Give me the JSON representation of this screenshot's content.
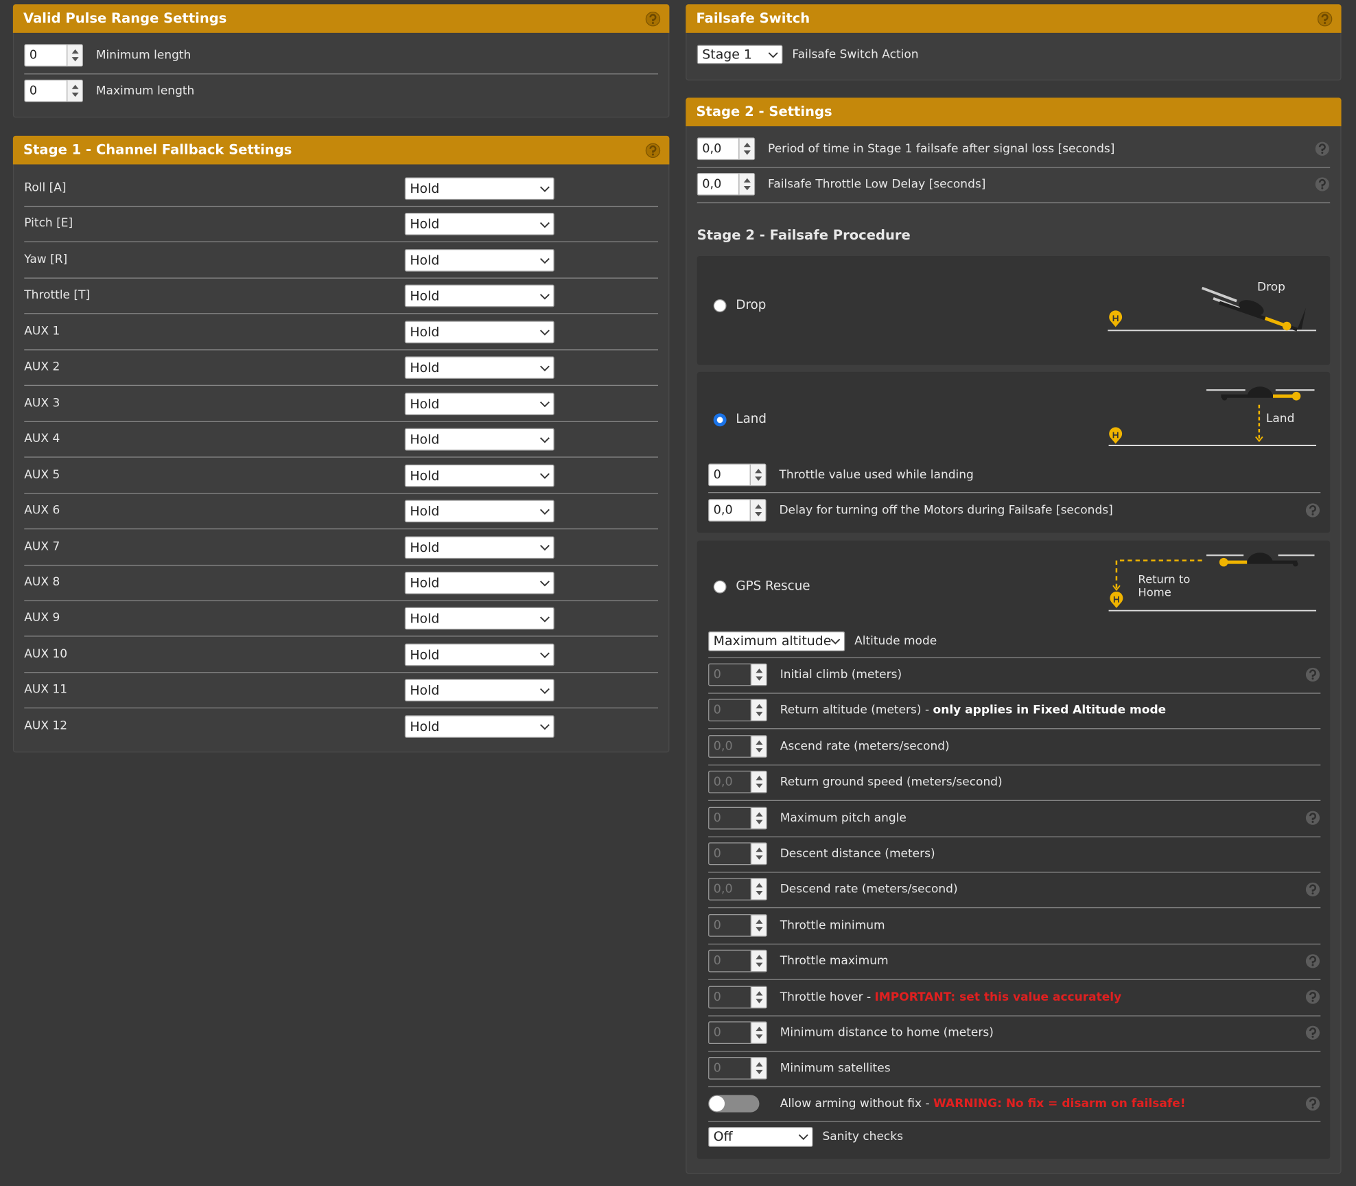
{
  "pulse": {
    "title": "Valid Pulse Range Settings",
    "help": true,
    "fields": [
      {
        "value": "0",
        "label": "Minimum length"
      },
      {
        "value": "0",
        "label": "Maximum length"
      }
    ]
  },
  "channels": {
    "title": "Stage 1 - Channel Fallback Settings",
    "help": true,
    "rows": [
      {
        "label": "Roll [A]",
        "value": "Hold"
      },
      {
        "label": "Pitch [E]",
        "value": "Hold"
      },
      {
        "label": "Yaw [R]",
        "value": "Hold"
      },
      {
        "label": "Throttle [T]",
        "value": "Hold"
      },
      {
        "label": "AUX 1",
        "value": "Hold"
      },
      {
        "label": "AUX 2",
        "value": "Hold"
      },
      {
        "label": "AUX 3",
        "value": "Hold"
      },
      {
        "label": "AUX 4",
        "value": "Hold"
      },
      {
        "label": "AUX 5",
        "value": "Hold"
      },
      {
        "label": "AUX 6",
        "value": "Hold"
      },
      {
        "label": "AUX 7",
        "value": "Hold"
      },
      {
        "label": "AUX 8",
        "value": "Hold"
      },
      {
        "label": "AUX 9",
        "value": "Hold"
      },
      {
        "label": "AUX 10",
        "value": "Hold"
      },
      {
        "label": "AUX 11",
        "value": "Hold"
      },
      {
        "label": "AUX 12",
        "value": "Hold"
      }
    ]
  },
  "switch": {
    "title": "Failsafe Switch",
    "value": "Stage 1",
    "label": "Failsafe Switch Action",
    "help": true
  },
  "stage2": {
    "title": "Stage 2 - Settings",
    "fields": [
      {
        "value": "0,0",
        "label": "Period of time in Stage 1 failsafe after signal loss [seconds]",
        "help": true
      },
      {
        "value": "0,0",
        "label": "Failsafe Throttle Low Delay [seconds]",
        "help": true
      }
    ]
  },
  "procedure": {
    "title": "Stage 2 - Failsafe Procedure",
    "options": [
      {
        "label": "Drop",
        "checked": false,
        "diagram": [
          "Drop"
        ]
      },
      {
        "label": "Land",
        "checked": true,
        "diagram": [
          "Land"
        ],
        "fields": [
          {
            "value": "0",
            "label": "Throttle value used while landing",
            "help": false
          },
          {
            "value": "0,0",
            "label": "Delay for turning off the Motors during Failsafe [seconds]",
            "help": true
          }
        ]
      },
      {
        "label": "GPS Rescue",
        "checked": false,
        "diagram": [
          "Return to",
          "Home"
        ]
      }
    ]
  },
  "gps": {
    "altitude_mode": {
      "value": "Maximum altitude",
      "label": "Altitude mode"
    },
    "fields": [
      {
        "value": "0",
        "label": "Initial climb (meters)",
        "help": true
      },
      {
        "value": "0",
        "label": "Return altitude (meters) - ",
        "emphasis": "only applies in Fixed Altitude mode",
        "help": false
      },
      {
        "value": "0,0",
        "label": "Ascend rate (meters/second)",
        "help": false
      },
      {
        "value": "0,0",
        "label": "Return ground speed (meters/second)",
        "help": false
      },
      {
        "value": "0",
        "label": "Maximum pitch angle",
        "help": true
      },
      {
        "value": "0",
        "label": "Descent distance (meters)",
        "help": false
      },
      {
        "value": "0,0",
        "label": "Descend rate (meters/second)",
        "help": true
      },
      {
        "value": "0",
        "label": "Throttle minimum",
        "help": false
      },
      {
        "value": "0",
        "label": "Throttle maximum",
        "help": true
      },
      {
        "value": "0",
        "label": "Throttle hover - ",
        "warning": "IMPORTANT: set this value accurately",
        "help": true
      },
      {
        "value": "0",
        "label": "Minimum distance to home (meters)",
        "help": true
      },
      {
        "value": "0",
        "label": "Minimum satellites",
        "help": false
      }
    ],
    "arming": {
      "label": "Allow arming without fix - ",
      "warning": "WARNING: No fix = disarm on failsafe!",
      "on": false,
      "help": true
    },
    "sanity": {
      "value": "Off",
      "label": "Sanity checks"
    }
  }
}
